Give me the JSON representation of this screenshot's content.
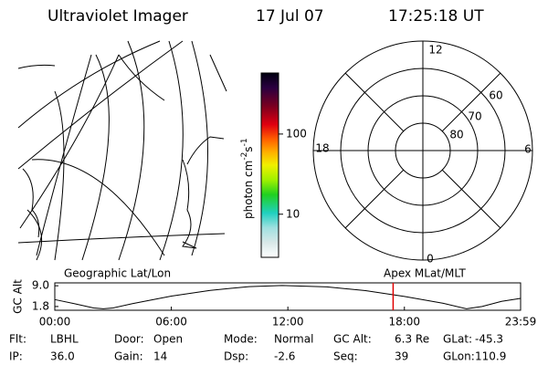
{
  "header": {
    "instrument": "Ultraviolet Imager",
    "date": "17 Jul 07",
    "time": "17:25:18 UT"
  },
  "map": {
    "label": "Geographic Lat/Lon"
  },
  "colorbar": {
    "label": "photon cm",
    "exp1": "-2",
    "unit2": "s",
    "exp2": "-1",
    "lim": [
      2.9,
      577
    ],
    "ticks": [
      100,
      10
    ],
    "log": true
  },
  "polar": {
    "label": "Apex MLat/MLT",
    "mlt_labels": [
      12,
      6,
      0,
      18
    ],
    "lat_labels": [
      60,
      70,
      80
    ]
  },
  "chart_data": {
    "type": "line",
    "y_label": "GC Alt",
    "color": "#000000",
    "marker_color": "#e00000",
    "x": [
      0,
      1,
      2,
      2.5,
      3,
      4,
      6,
      8,
      10,
      11.7,
      14,
      16,
      18,
      20,
      21.2,
      22,
      23,
      23.983
    ],
    "values": [
      4.2,
      2.8,
      1.3,
      1.0,
      1.3,
      2.8,
      5.4,
      7.4,
      8.7,
      9.1,
      8.6,
      7.3,
      5.3,
      2.9,
      1.0,
      1.8,
      3.6,
      4.6
    ],
    "marker_x": 17.42,
    "xlim": [
      0,
      23.983
    ],
    "ylim": [
      0.5,
      10
    ],
    "xticks": [
      {
        "value": 0,
        "label": "00:00"
      },
      {
        "value": 6,
        "label": "06:00"
      },
      {
        "value": 12,
        "label": "12:00"
      },
      {
        "value": 18,
        "label": "18:00"
      },
      {
        "value": 23.983,
        "label": "23:59"
      }
    ],
    "yticks": [
      {
        "value": 9,
        "label": "9.0"
      },
      1.8
    ]
  },
  "footer": {
    "rows": [
      [
        [
          "Flt:",
          "LBHL"
        ],
        [
          "Door:",
          "Open"
        ],
        [
          "Mode:",
          "Normal"
        ],
        [
          "GC Alt:",
          "6.3 Re"
        ],
        [
          "GLat:",
          "-45.3"
        ]
      ],
      [
        [
          "IP:",
          "36.0"
        ],
        [
          "Gain:",
          "14"
        ],
        [
          "Dsp:",
          "-2.6"
        ],
        [
          "Seq:",
          "39"
        ],
        [
          "GLon:",
          "110.9"
        ]
      ]
    ]
  }
}
